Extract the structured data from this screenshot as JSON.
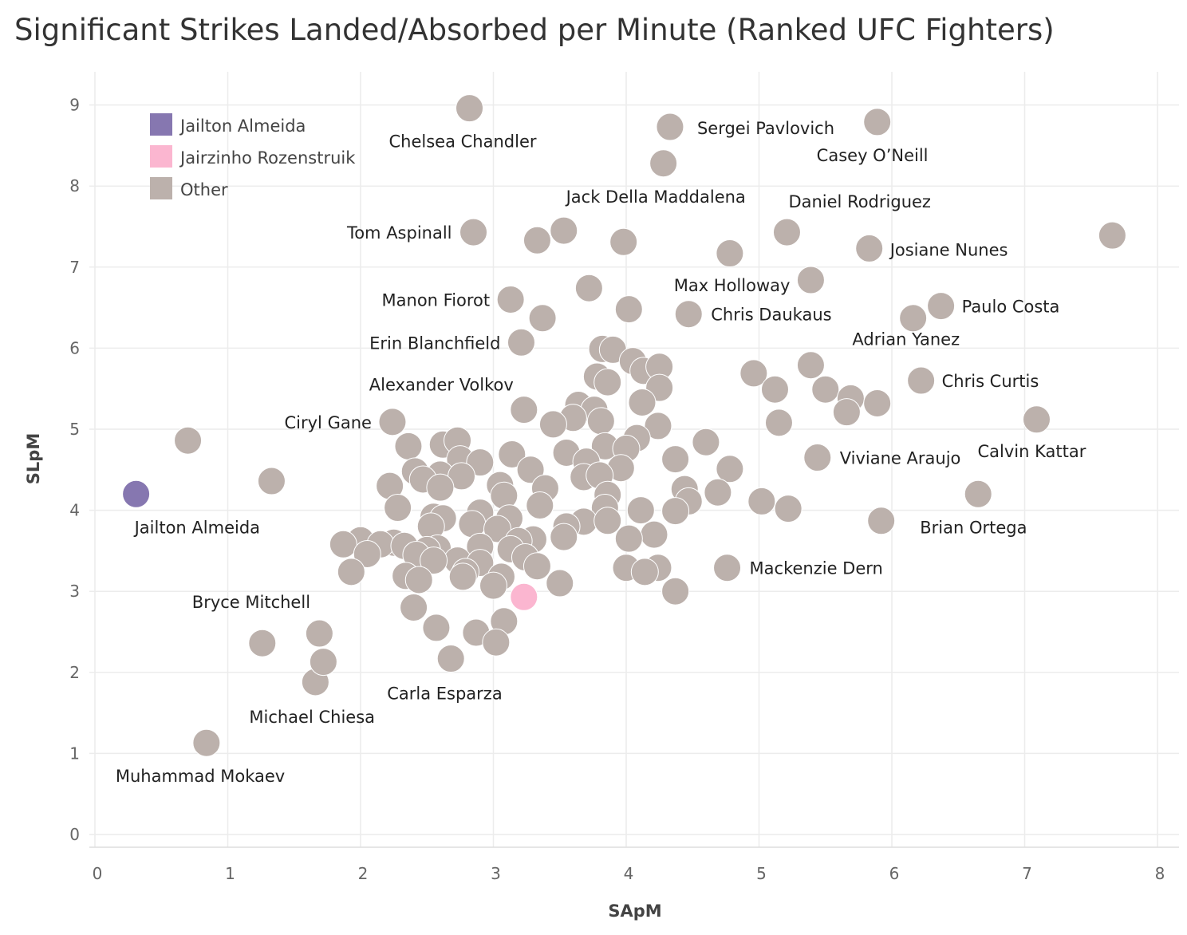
{
  "chart_data": {
    "type": "scatter",
    "title": "Significant Strikes Landed/Absorbed per Minute (Ranked UFC Fighters)",
    "xlabel": "SApM",
    "ylabel": "SLpM",
    "xlim": [
      0,
      8
    ],
    "ylim": [
      0,
      9.5
    ],
    "xticks": [
      "0",
      "1",
      "2",
      "3",
      "4",
      "5",
      "6",
      "7",
      "8"
    ],
    "yticks": [
      "0",
      "1",
      "2",
      "3",
      "4",
      "5",
      "6",
      "7",
      "8",
      "9"
    ],
    "grid": true,
    "legend_position": "top-left",
    "colors": {
      "Jailton Almeida": "#8677b0",
      "Jairzinho Rozenstruik": "#fbb6d0",
      "Other": "#bcb1ac"
    },
    "legend": [
      "Jailton Almeida",
      "Jairzinho Rozenstruik",
      "Other"
    ],
    "series": [
      {
        "name": "Jailton Almeida",
        "points": [
          {
            "x": 0.31,
            "y": 4.2,
            "label": "Jailton Almeida"
          }
        ]
      },
      {
        "name": "Jairzinho Rozenstruik",
        "points": [
          {
            "x": 3.23,
            "y": 2.93
          }
        ]
      },
      {
        "name": "Other",
        "points": [
          {
            "x": 2.82,
            "y": 8.96,
            "label": "Chelsea Chandler"
          },
          {
            "x": 4.33,
            "y": 8.73,
            "label": "Sergei Pavlovich"
          },
          {
            "x": 5.89,
            "y": 8.79,
            "label": "Casey O’Neill"
          },
          {
            "x": 4.28,
            "y": 8.28,
            "label": "Jack Della Maddalena"
          },
          {
            "x": 5.21,
            "y": 7.43,
            "label": "Daniel Rodriguez"
          },
          {
            "x": 2.85,
            "y": 7.43,
            "label": "Tom Aspinall"
          },
          {
            "x": 5.83,
            "y": 7.23,
            "label": "Josiane Nunes"
          },
          {
            "x": 5.39,
            "y": 6.84,
            "label": "Max Holloway"
          },
          {
            "x": 3.13,
            "y": 6.6,
            "label": "Manon Fiorot"
          },
          {
            "x": 4.47,
            "y": 6.42,
            "label": "Chris Daukaus"
          },
          {
            "x": 6.37,
            "y": 6.52,
            "label": "Paulo Costa"
          },
          {
            "x": 3.21,
            "y": 6.07,
            "label": "Erin Blanchfield"
          },
          {
            "x": 5.39,
            "y": 5.79,
            "label": "Adrian Yanez"
          },
          {
            "x": 6.22,
            "y": 5.6,
            "label": "Chris Curtis"
          },
          {
            "x": 3.23,
            "y": 5.24,
            "label": "Alexander Volkov"
          },
          {
            "x": 2.24,
            "y": 5.09,
            "label": "Ciryl Gane"
          },
          {
            "x": 7.09,
            "y": 5.12,
            "label": "Calvin Kattar"
          },
          {
            "x": 5.44,
            "y": 4.65,
            "label": "Viviane Araujo"
          },
          {
            "x": 6.65,
            "y": 4.2,
            "label": "Brian Ortega"
          },
          {
            "x": 4.76,
            "y": 3.29,
            "label": "Mackenzie Dern"
          },
          {
            "x": 1.26,
            "y": 2.36,
            "label": "Bryce Mitchell"
          },
          {
            "x": 2.68,
            "y": 2.17,
            "label": "Carla Esparza"
          },
          {
            "x": 1.66,
            "y": 1.88,
            "label": "Michael Chiesa"
          },
          {
            "x": 0.84,
            "y": 1.13,
            "label": "Muhammad Mokaev"
          },
          {
            "x": 7.66,
            "y": 7.39
          },
          {
            "x": 0.7,
            "y": 4.86
          },
          {
            "x": 1.33,
            "y": 4.36
          },
          {
            "x": 3.33,
            "y": 7.33
          },
          {
            "x": 3.53,
            "y": 7.45
          },
          {
            "x": 3.98,
            "y": 7.31
          },
          {
            "x": 4.78,
            "y": 7.17
          },
          {
            "x": 3.72,
            "y": 6.74
          },
          {
            "x": 4.02,
            "y": 6.48
          },
          {
            "x": 3.37,
            "y": 6.37
          },
          {
            "x": 6.16,
            "y": 6.37
          },
          {
            "x": 3.82,
            "y": 5.99
          },
          {
            "x": 3.9,
            "y": 5.98
          },
          {
            "x": 4.05,
            "y": 5.84
          },
          {
            "x": 4.13,
            "y": 5.72
          },
          {
            "x": 4.25,
            "y": 5.77
          },
          {
            "x": 4.96,
            "y": 5.69
          },
          {
            "x": 3.78,
            "y": 5.65
          },
          {
            "x": 3.86,
            "y": 5.58
          },
          {
            "x": 5.12,
            "y": 5.49
          },
          {
            "x": 5.5,
            "y": 5.49
          },
          {
            "x": 4.25,
            "y": 5.51
          },
          {
            "x": 5.69,
            "y": 5.38
          },
          {
            "x": 5.89,
            "y": 5.32
          },
          {
            "x": 4.12,
            "y": 5.33
          },
          {
            "x": 3.64,
            "y": 5.3
          },
          {
            "x": 3.76,
            "y": 5.24
          },
          {
            "x": 5.66,
            "y": 5.21
          },
          {
            "x": 3.6,
            "y": 5.14
          },
          {
            "x": 3.81,
            "y": 5.1
          },
          {
            "x": 5.15,
            "y": 5.08
          },
          {
            "x": 3.45,
            "y": 5.06
          },
          {
            "x": 4.24,
            "y": 5.04
          },
          {
            "x": 4.08,
            "y": 4.89
          },
          {
            "x": 4.6,
            "y": 4.84
          },
          {
            "x": 2.62,
            "y": 4.81
          },
          {
            "x": 2.73,
            "y": 4.86
          },
          {
            "x": 2.36,
            "y": 4.79
          },
          {
            "x": 3.84,
            "y": 4.79
          },
          {
            "x": 4.0,
            "y": 4.76
          },
          {
            "x": 3.55,
            "y": 4.71
          },
          {
            "x": 3.14,
            "y": 4.69
          },
          {
            "x": 2.75,
            "y": 4.63
          },
          {
            "x": 4.37,
            "y": 4.63
          },
          {
            "x": 3.7,
            "y": 4.6
          },
          {
            "x": 2.9,
            "y": 4.59
          },
          {
            "x": 3.96,
            "y": 4.52
          },
          {
            "x": 4.78,
            "y": 4.51
          },
          {
            "x": 2.41,
            "y": 4.48
          },
          {
            "x": 3.28,
            "y": 4.5
          },
          {
            "x": 2.6,
            "y": 4.44
          },
          {
            "x": 2.76,
            "y": 4.42
          },
          {
            "x": 3.68,
            "y": 4.41
          },
          {
            "x": 3.8,
            "y": 4.43
          },
          {
            "x": 2.47,
            "y": 4.38
          },
          {
            "x": 3.05,
            "y": 4.31
          },
          {
            "x": 2.22,
            "y": 4.3
          },
          {
            "x": 2.6,
            "y": 4.28
          },
          {
            "x": 3.39,
            "y": 4.27
          },
          {
            "x": 4.44,
            "y": 4.26
          },
          {
            "x": 4.69,
            "y": 4.22
          },
          {
            "x": 3.08,
            "y": 4.18
          },
          {
            "x": 3.86,
            "y": 4.19
          },
          {
            "x": 4.47,
            "y": 4.11
          },
          {
            "x": 5.02,
            "y": 4.11
          },
          {
            "x": 3.35,
            "y": 4.06
          },
          {
            "x": 2.28,
            "y": 4.03
          },
          {
            "x": 5.22,
            "y": 4.02
          },
          {
            "x": 3.84,
            "y": 4.03
          },
          {
            "x": 4.11,
            "y": 4.0
          },
          {
            "x": 4.37,
            "y": 3.99
          },
          {
            "x": 2.9,
            "y": 3.97
          },
          {
            "x": 2.55,
            "y": 3.92
          },
          {
            "x": 2.62,
            "y": 3.9
          },
          {
            "x": 3.12,
            "y": 3.9
          },
          {
            "x": 5.92,
            "y": 3.87
          },
          {
            "x": 3.68,
            "y": 3.86
          },
          {
            "x": 3.86,
            "y": 3.87
          },
          {
            "x": 2.84,
            "y": 3.83
          },
          {
            "x": 3.55,
            "y": 3.8
          },
          {
            "x": 2.53,
            "y": 3.8
          },
          {
            "x": 3.03,
            "y": 3.77
          },
          {
            "x": 4.21,
            "y": 3.7
          },
          {
            "x": 3.53,
            "y": 3.67
          },
          {
            "x": 4.02,
            "y": 3.65
          },
          {
            "x": 3.3,
            "y": 3.64
          },
          {
            "x": 2.0,
            "y": 3.63
          },
          {
            "x": 3.19,
            "y": 3.62
          },
          {
            "x": 2.25,
            "y": 3.6
          },
          {
            "x": 1.87,
            "y": 3.58
          },
          {
            "x": 2.15,
            "y": 3.58
          },
          {
            "x": 2.33,
            "y": 3.56
          },
          {
            "x": 2.9,
            "y": 3.55
          },
          {
            "x": 2.58,
            "y": 3.53
          },
          {
            "x": 3.13,
            "y": 3.52
          },
          {
            "x": 2.5,
            "y": 3.51
          },
          {
            "x": 2.05,
            "y": 3.46
          },
          {
            "x": 2.42,
            "y": 3.45
          },
          {
            "x": 3.24,
            "y": 3.42
          },
          {
            "x": 2.73,
            "y": 3.38
          },
          {
            "x": 2.55,
            "y": 3.38
          },
          {
            "x": 2.9,
            "y": 3.35
          },
          {
            "x": 3.33,
            "y": 3.31
          },
          {
            "x": 4.24,
            "y": 3.29
          },
          {
            "x": 4.0,
            "y": 3.29
          },
          {
            "x": 2.79,
            "y": 3.24
          },
          {
            "x": 1.93,
            "y": 3.24
          },
          {
            "x": 4.14,
            "y": 3.24
          },
          {
            "x": 2.34,
            "y": 3.19
          },
          {
            "x": 2.77,
            "y": 3.18
          },
          {
            "x": 3.06,
            "y": 3.18
          },
          {
            "x": 2.44,
            "y": 3.14
          },
          {
            "x": 3.5,
            "y": 3.1
          },
          {
            "x": 3.0,
            "y": 3.07
          },
          {
            "x": 4.37,
            "y": 3.0
          },
          {
            "x": 2.4,
            "y": 2.8
          },
          {
            "x": 3.08,
            "y": 2.63
          },
          {
            "x": 2.57,
            "y": 2.55
          },
          {
            "x": 1.69,
            "y": 2.48
          },
          {
            "x": 2.87,
            "y": 2.49
          },
          {
            "x": 3.02,
            "y": 2.37
          },
          {
            "x": 1.72,
            "y": 2.13
          }
        ]
      }
    ]
  }
}
